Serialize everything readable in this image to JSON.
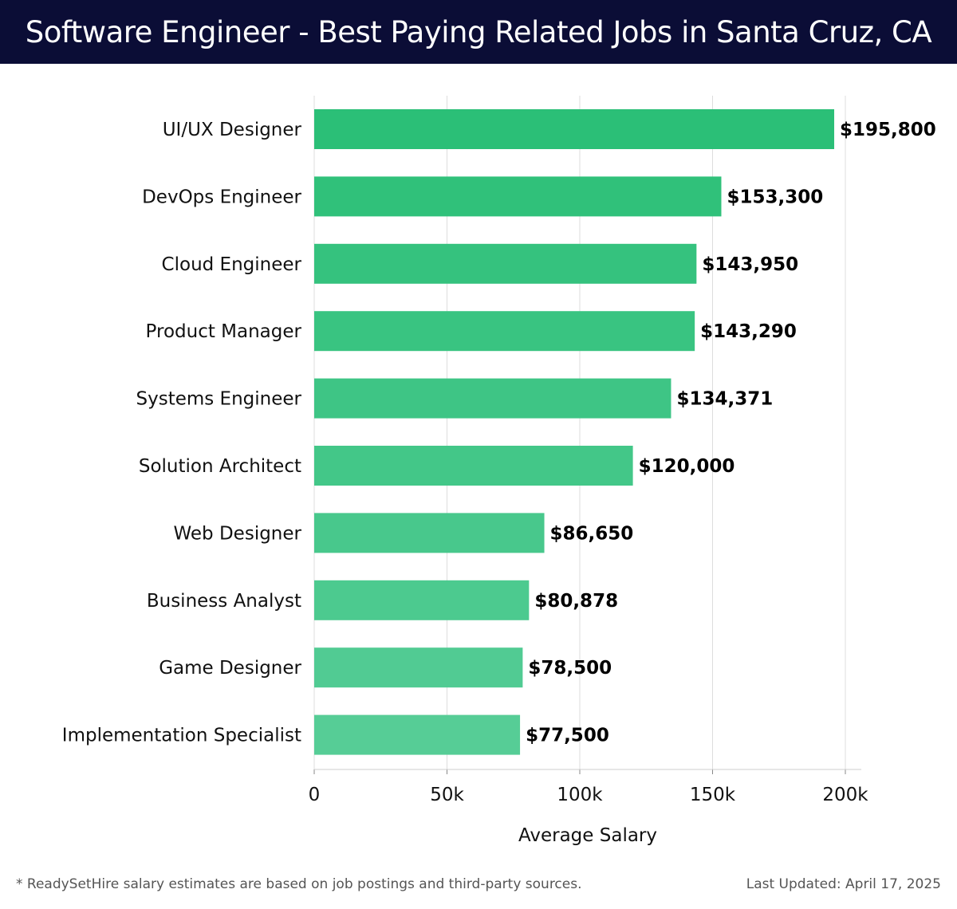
{
  "header": {
    "title": "Software Engineer - Best Paying Related Jobs in Santa Cruz, CA"
  },
  "chart_data": {
    "type": "bar",
    "orientation": "horizontal",
    "title": "Software Engineer - Best Paying Related Jobs in Santa Cruz, CA",
    "xlabel": "Average Salary",
    "ylabel": "",
    "xlim": [
      0,
      200000
    ],
    "x_ticks": [
      {
        "value": 0,
        "label": "0"
      },
      {
        "value": 50000,
        "label": "50k"
      },
      {
        "value": 100000,
        "label": "100k"
      },
      {
        "value": 150000,
        "label": "150k"
      },
      {
        "value": 200000,
        "label": "200k"
      }
    ],
    "grid": true,
    "categories": [
      "UI/UX Designer",
      "DevOps Engineer",
      "Cloud Engineer",
      "Product Manager",
      "Systems Engineer",
      "Solution Architect",
      "Web Designer",
      "Business Analyst",
      "Game Designer",
      "Implementation Specialist"
    ],
    "values": [
      195800,
      153300,
      143950,
      143290,
      134371,
      120000,
      86650,
      80878,
      78500,
      77500
    ],
    "value_labels": [
      "$195,800",
      "$153,300",
      "$143,950",
      "$143,290",
      "$134,371",
      "$120,000",
      "$86,650",
      "$80,878",
      "$78,500",
      "$77,500"
    ],
    "colors": {
      "bar_dark": "#2bbf77",
      "bar_light": "#56cd96",
      "grid": "#dddddd",
      "axis": "#cccccc"
    }
  },
  "footer": {
    "note": "* ReadySetHire salary estimates are based on job postings and third-party sources.",
    "updated": "Last Updated: April 17, 2025"
  }
}
